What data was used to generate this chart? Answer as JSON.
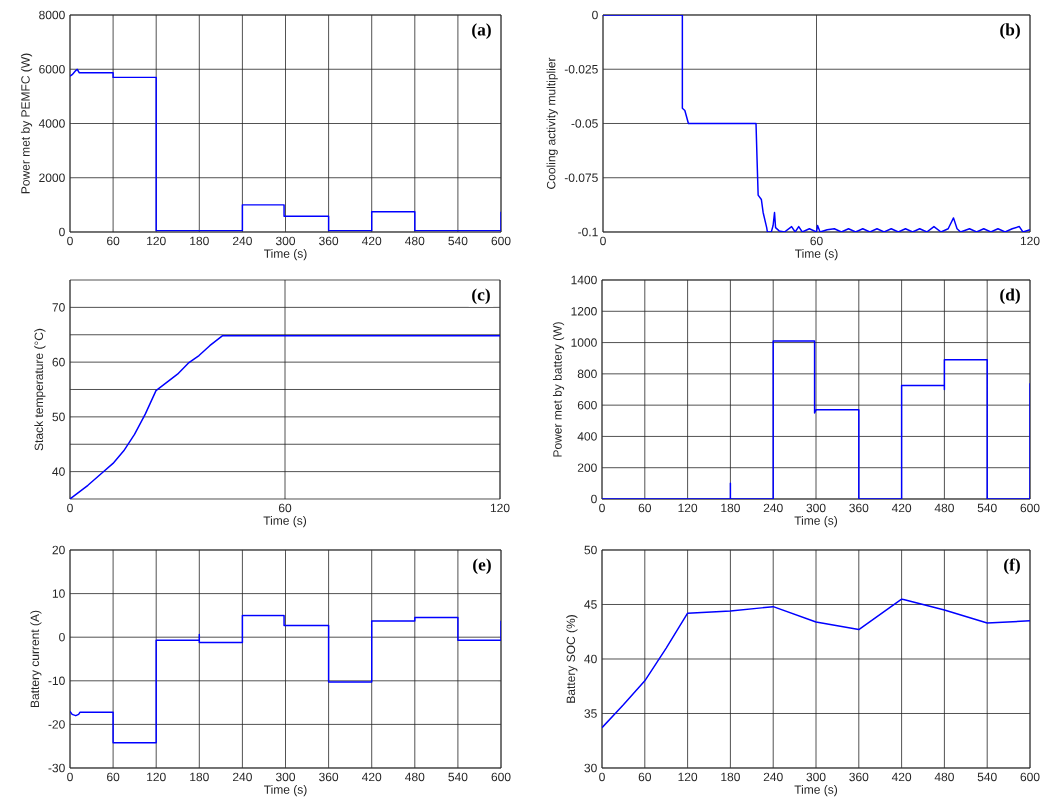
{
  "chart_data": [
    {
      "type": "line",
      "xlabel": "Time (s)",
      "ylabel": "Power met by PEMFC (W)",
      "annotations": [
        "(a)"
      ],
      "color": "#0000ff",
      "grid": true,
      "x": [
        0,
        3,
        8,
        10,
        13,
        60,
        60,
        120,
        120,
        240,
        240,
        298,
        298,
        360,
        360,
        420,
        420,
        480,
        480,
        600,
        600
      ],
      "values": [
        5750,
        5800,
        5950,
        6000,
        5870,
        5870,
        5700,
        5700,
        50,
        50,
        1000,
        1000,
        580,
        580,
        50,
        50,
        750,
        750,
        50,
        50,
        750
      ],
      "xlim": [
        0,
        600
      ],
      "ylim": [
        0,
        8000
      ],
      "xticks": [
        0,
        60,
        120,
        180,
        240,
        300,
        360,
        420,
        480,
        540,
        600
      ],
      "yticks": [
        0,
        2000,
        4000,
        6000,
        8000
      ]
    },
    {
      "type": "line",
      "xlabel": "Time (s)",
      "ylabel": "Cooling activity multiplier",
      "annotations": [
        "(b)"
      ],
      "color": "#0000ff",
      "grid": true,
      "x": [
        0,
        22.3,
        22.3,
        23,
        24,
        43,
        43.3,
        43.6,
        44.5,
        45,
        46,
        46.2,
        47.3,
        47.8,
        48.2,
        48.5,
        49.5,
        51,
        53,
        54,
        55,
        56,
        58,
        60,
        60.3,
        61,
        63,
        65,
        67,
        69,
        71,
        73,
        75,
        77,
        79,
        81,
        83,
        85,
        87,
        89,
        91,
        93,
        95,
        97,
        98.5,
        99.5,
        100.5,
        103,
        105,
        107,
        109,
        111,
        113,
        115,
        117,
        118,
        120
      ],
      "values": [
        0,
        0,
        -0.043,
        -0.044,
        -0.05,
        -0.05,
        -0.067,
        -0.083,
        -0.085,
        -0.091,
        -0.098,
        -0.1,
        -0.1,
        -0.097,
        -0.091,
        -0.098,
        -0.0995,
        -0.1,
        -0.0975,
        -0.1,
        -0.0975,
        -0.1,
        -0.0985,
        -0.1,
        -0.097,
        -0.1,
        -0.099,
        -0.0985,
        -0.1,
        -0.0985,
        -0.1,
        -0.0985,
        -0.1,
        -0.0985,
        -0.1,
        -0.0985,
        -0.1,
        -0.0985,
        -0.1,
        -0.0985,
        -0.1,
        -0.0975,
        -0.1,
        -0.0985,
        -0.0935,
        -0.0985,
        -0.1,
        -0.0985,
        -0.1,
        -0.0985,
        -0.1,
        -0.0985,
        -0.1,
        -0.0985,
        -0.0975,
        -0.1,
        -0.099
      ],
      "xlim": [
        0,
        120
      ],
      "ylim": [
        -0.1,
        0
      ],
      "xticks": [
        0,
        60,
        120
      ],
      "yticks": [
        -0.1,
        -0.075,
        -0.05,
        -0.025,
        0
      ]
    },
    {
      "type": "line",
      "xlabel": "Time (s)",
      "ylabel": "Stack temperature (°C)",
      "annotations": [
        "(c)"
      ],
      "color": "#0000ff",
      "grid": true,
      "x": [
        0,
        5,
        9,
        12,
        15,
        18,
        21,
        24,
        27,
        30,
        33,
        36,
        39,
        42.5,
        120
      ],
      "values": [
        35,
        37.5,
        39.8,
        41.5,
        43.8,
        46.8,
        50.5,
        54.8,
        56.3,
        57.8,
        59.8,
        61.2,
        63,
        64.8,
        64.8
      ],
      "xlim": [
        0,
        120
      ],
      "ylim": [
        35,
        75
      ],
      "xticks": [
        0,
        60,
        120
      ],
      "yticks": [
        40,
        {
          "value": 45,
          "label": null
        },
        50,
        {
          "value": 55,
          "label": null
        },
        60,
        {
          "value": 65,
          "label": null
        },
        70
      ]
    },
    {
      "type": "line",
      "xlabel": "Time (s)",
      "ylabel": "Power met by battery (W)",
      "annotations": [
        "(d)"
      ],
      "color": "#0000ff",
      "grid": true,
      "x": [
        0,
        180,
        180,
        180,
        240,
        240,
        298,
        298,
        300,
        360,
        360,
        420,
        420,
        480,
        480,
        480,
        540,
        540,
        600,
        600
      ],
      "values": [
        0,
        0,
        100,
        0,
        0,
        1010,
        1010,
        550,
        570,
        570,
        0,
        0,
        725,
        725,
        700,
        890,
        890,
        0,
        0,
        740
      ],
      "xlim": [
        0,
        600
      ],
      "ylim": [
        0,
        1400
      ],
      "xticks": [
        0,
        60,
        120,
        180,
        240,
        300,
        360,
        420,
        480,
        540,
        600
      ],
      "yticks": [
        0,
        200,
        400,
        600,
        800,
        1000,
        1200,
        1400
      ]
    },
    {
      "type": "line",
      "xlabel": "Time (s)",
      "ylabel": "Battery current (A)",
      "annotations": [
        "(e)"
      ],
      "color": "#0000ff",
      "grid": true,
      "x": [
        0,
        3,
        8,
        12,
        14,
        60,
        60,
        120,
        120,
        180,
        180,
        180,
        240,
        240,
        298,
        298,
        360,
        360,
        420,
        420,
        480,
        480,
        540,
        540,
        600,
        600
      ],
      "values": [
        -17,
        -17.7,
        -18,
        -17.7,
        -17.2,
        -17.2,
        -24.2,
        -24.2,
        -0.7,
        -0.7,
        0.6,
        -1.2,
        -1.2,
        5,
        5,
        2.7,
        2.7,
        -10.3,
        -10.3,
        3.7,
        3.7,
        4.5,
        4.5,
        -0.7,
        -0.7,
        3.8
      ],
      "xlim": [
        0,
        600
      ],
      "ylim": [
        -30,
        20
      ],
      "xticks": [
        0,
        60,
        120,
        180,
        240,
        300,
        360,
        420,
        480,
        540,
        600
      ],
      "yticks": [
        -30,
        -20,
        -10,
        0,
        10,
        20
      ]
    },
    {
      "type": "line",
      "xlabel": "Time (s)",
      "ylabel": "Battery SOC (%)",
      "annotations": [
        "(f)"
      ],
      "color": "#0000ff",
      "grid": true,
      "x": [
        0,
        30,
        60,
        90,
        120,
        180,
        240,
        300,
        360,
        420,
        480,
        540,
        600
      ],
      "values": [
        33.7,
        35.8,
        38,
        41,
        44.2,
        44.4,
        44.8,
        43.4,
        42.7,
        45.5,
        44.5,
        43.3,
        43.5
      ],
      "xlim": [
        0,
        600
      ],
      "ylim": [
        30,
        50
      ],
      "xticks": [
        0,
        60,
        120,
        180,
        240,
        300,
        360,
        420,
        480,
        540,
        600
      ],
      "yticks": [
        30,
        35,
        40,
        45,
        50
      ]
    }
  ]
}
